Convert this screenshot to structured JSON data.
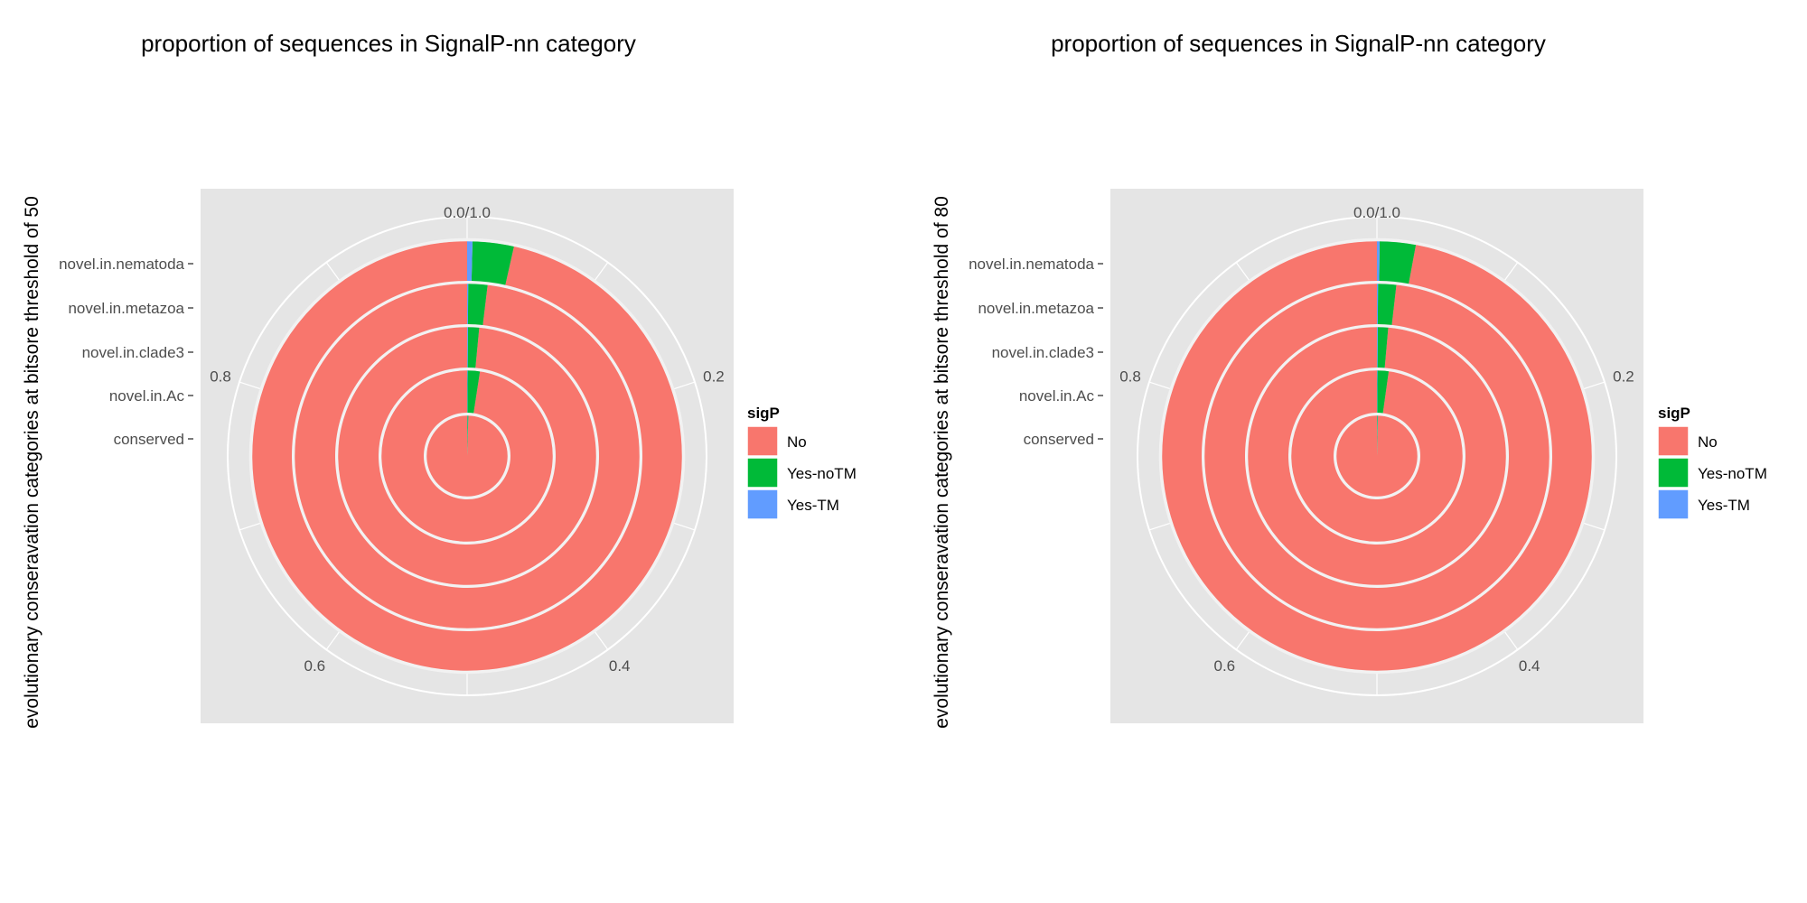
{
  "chart_data": [
    {
      "type": "pie",
      "variant": "stacked-polar-bar",
      "title": "proportion of sequences in SignalP-nn category",
      "ylabel": "evolutionary conseravation categories at bitsore threshold of 50",
      "categories": [
        "conserved",
        "novel.in.Ac",
        "novel.in.clade3",
        "novel.in.metazoa",
        "novel.in.nematoda"
      ],
      "angle_ticks": [
        "0.0/1.0",
        "0.2",
        "0.4",
        "0.6",
        "0.8"
      ],
      "legend": {
        "title": "sigP",
        "position": "right"
      },
      "series": [
        {
          "name": "No",
          "color": "#F8766D",
          "values": [
            0.995,
            0.976,
            0.985,
            0.981,
            0.965
          ]
        },
        {
          "name": "Yes-noTM",
          "color": "#00BA38",
          "values": [
            0.004,
            0.023,
            0.014,
            0.018,
            0.031
          ]
        },
        {
          "name": "Yes-TM",
          "color": "#619CFF",
          "values": [
            0.001,
            0.001,
            0.001,
            0.001,
            0.004
          ]
        }
      ]
    },
    {
      "type": "pie",
      "variant": "stacked-polar-bar",
      "title": "proportion of sequences in SignalP-nn category",
      "ylabel": "evolutionary conseravation categories at bitsore threshold of 80",
      "categories": [
        "conserved",
        "novel.in.Ac",
        "novel.in.clade3",
        "novel.in.metazoa",
        "novel.in.nematoda"
      ],
      "angle_ticks": [
        "0.0/1.0",
        "0.2",
        "0.4",
        "0.6",
        "0.8"
      ],
      "legend": {
        "title": "sigP",
        "position": "right"
      },
      "series": [
        {
          "name": "No",
          "color": "#F8766D",
          "values": [
            0.996,
            0.978,
            0.986,
            0.982,
            0.971
          ]
        },
        {
          "name": "Yes-noTM",
          "color": "#00BA38",
          "values": [
            0.003,
            0.021,
            0.013,
            0.017,
            0.027
          ]
        },
        {
          "name": "Yes-TM",
          "color": "#619CFF",
          "values": [
            0.001,
            0.001,
            0.001,
            0.001,
            0.002
          ]
        }
      ]
    }
  ]
}
